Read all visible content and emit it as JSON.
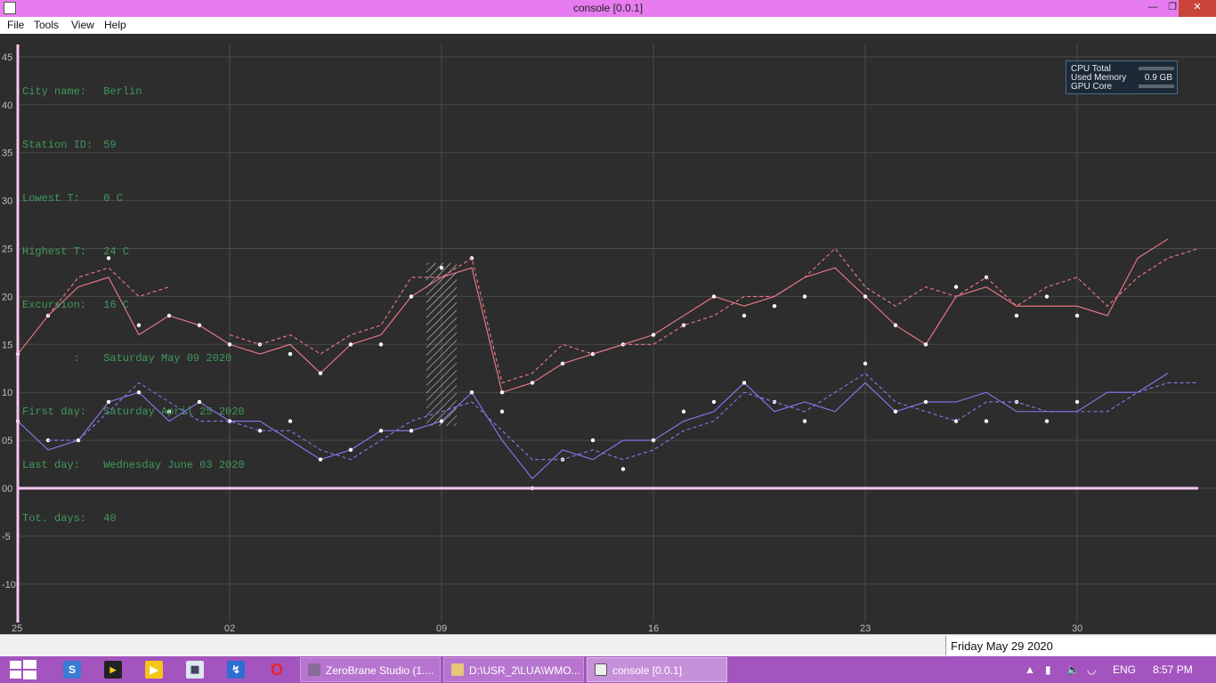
{
  "window": {
    "title": "console [0.0.1]",
    "minimize_icon": "minimize-icon",
    "restore_icon": "restore-icon",
    "close_icon": "close-icon"
  },
  "menu": [
    "File",
    "Tools",
    "View",
    "Help"
  ],
  "info": [
    {
      "key": "City name:",
      "value": "Berlin"
    },
    {
      "key": "Station ID:",
      "value": "59"
    },
    {
      "key": "Lowest T:",
      "value": "0 C"
    },
    {
      "key": "Highest T:",
      "value": "24 C"
    },
    {
      "key": "Excursion:",
      "value": "16 C"
    },
    {
      "key": "        :",
      "value": "Saturday May 09 2020"
    },
    {
      "key": "First day:",
      "value": "Saturday April 25 2020"
    },
    {
      "key": "Last day:",
      "value": "Wednesday June 03 2020"
    },
    {
      "key": "Tot. days:",
      "value": "40"
    }
  ],
  "gadget": {
    "cpu_label": "CPU Total",
    "mem_label": "Used Memory",
    "mem_value": "0.9 GB",
    "gpu_label": "GPU Core"
  },
  "colors": {
    "high": "#f07a8a",
    "low": "#8a78f0",
    "info_text": "#3f9a5c",
    "axis": "#f6c8f0",
    "grid": "#4a4a4a",
    "hatch": "#d8d8d8"
  },
  "chart_data": {
    "type": "line",
    "title": "",
    "ylim": [
      -13,
      46
    ],
    "y_ticks": [
      "45",
      "40",
      "35",
      "30",
      "25",
      "20",
      "15",
      "10",
      "05",
      "00",
      "-5",
      "-10"
    ],
    "y_tick_values": [
      45,
      40,
      35,
      30,
      25,
      20,
      15,
      10,
      5,
      0,
      -5,
      -10
    ],
    "x_range": [
      0,
      39
    ],
    "x_ticks": [
      {
        "day": 0,
        "label": "25"
      },
      {
        "day": 7,
        "label": "02"
      },
      {
        "day": 14,
        "label": "09"
      },
      {
        "day": 21,
        "label": "16"
      },
      {
        "day": 28,
        "label": "23"
      },
      {
        "day": 35,
        "label": "30"
      }
    ],
    "highlight_day": 14,
    "series": [
      {
        "key": "high",
        "color": "#f07a8a",
        "values": [
          14,
          18,
          21,
          22,
          16,
          18,
          17,
          15,
          14,
          15,
          12,
          15,
          16,
          20,
          22,
          23,
          10,
          11,
          13,
          14,
          15,
          16,
          18,
          20,
          19,
          20,
          22,
          23,
          20,
          17,
          15,
          20,
          21,
          19,
          19,
          19,
          18,
          24,
          26,
          null
        ],
        "markers": [
          14,
          18,
          null,
          24,
          17,
          18,
          17,
          15,
          15,
          14,
          12,
          15,
          15,
          20,
          23,
          24,
          10,
          11,
          13,
          14,
          15,
          16,
          17,
          20,
          18,
          19,
          20,
          null,
          20,
          17,
          15,
          21,
          22,
          18,
          20,
          18,
          null,
          null,
          null,
          null
        ]
      },
      {
        "key": "high_dashed",
        "color": "#f07a8a",
        "dashed": true,
        "values": [
          null,
          18,
          22,
          23,
          20,
          21,
          null,
          16,
          15,
          16,
          14,
          16,
          17,
          22,
          22,
          24,
          11,
          12,
          15,
          14,
          15,
          15,
          17,
          18,
          20,
          20,
          22,
          25,
          21,
          19,
          21,
          20,
          22,
          19,
          21,
          22,
          19,
          22,
          24,
          25
        ]
      },
      {
        "key": "low",
        "color": "#8a78f0",
        "values": [
          7,
          4,
          5,
          9,
          10,
          7,
          9,
          7,
          7,
          5,
          3,
          4,
          6,
          6,
          7,
          10,
          5,
          1,
          4,
          3,
          5,
          5,
          7,
          8,
          11,
          8,
          9,
          8,
          11,
          8,
          9,
          9,
          10,
          8,
          8,
          8,
          10,
          10,
          12,
          null
        ],
        "markers": [
          7,
          5,
          5,
          9,
          10,
          8,
          9,
          7,
          6,
          7,
          3,
          4,
          6,
          6,
          7,
          10,
          8,
          0,
          3,
          5,
          2,
          5,
          8,
          9,
          11,
          9,
          7,
          null,
          13,
          8,
          9,
          7,
          7,
          9,
          7,
          9,
          null,
          null,
          null,
          null
        ]
      },
      {
        "key": "low_dashed",
        "color": "#8a78f0",
        "dashed": true,
        "values": [
          null,
          5,
          5,
          8,
          11,
          9,
          7,
          7,
          6,
          6,
          4,
          3,
          5,
          7,
          8,
          9,
          6,
          3,
          3,
          4,
          3,
          4,
          6,
          7,
          10,
          9,
          8,
          10,
          12,
          9,
          8,
          7,
          9,
          9,
          8,
          8,
          8,
          10,
          11,
          11
        ]
      }
    ]
  },
  "status": {
    "date": "Friday May 29 2020"
  },
  "taskbar": {
    "tasks": [
      "ZeroBrane Studio (1....",
      "D:\\USR_2\\LUA\\WMO...",
      "console [0.0.1]"
    ],
    "lang": "ENG",
    "time": "8:57 PM"
  }
}
